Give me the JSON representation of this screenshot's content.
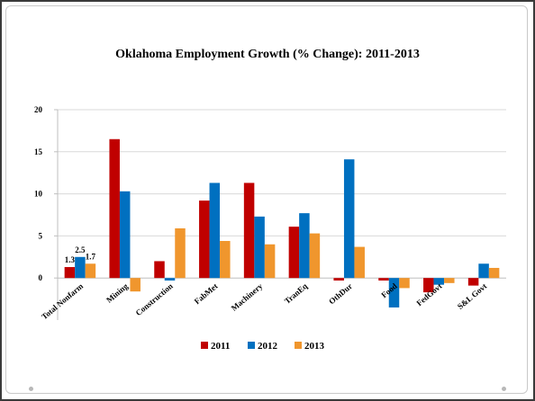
{
  "chart_data": {
    "type": "bar",
    "title": "Oklahoma Employment Growth (% Change): 2011-2013",
    "xlabel": "",
    "ylabel": "",
    "categories": [
      "Total Nonfarm",
      "Mining",
      "Construction",
      "FabMet",
      "Machinery",
      "TranEq",
      "OthDur",
      "Food",
      "FedGovt",
      "S&L Govt"
    ],
    "series": [
      {
        "name": "2011",
        "color": "#c00000",
        "values": [
          1.3,
          16.5,
          2.0,
          9.2,
          11.3,
          6.1,
          -0.3,
          -0.3,
          -1.7,
          -0.9
        ]
      },
      {
        "name": "2012",
        "color": "#0070c0",
        "values": [
          2.5,
          10.3,
          -0.3,
          11.3,
          7.3,
          7.7,
          14.1,
          -3.5,
          -0.8,
          1.7
        ]
      },
      {
        "name": "2013",
        "color": "#f0962d",
        "values": [
          1.7,
          -1.6,
          5.9,
          4.4,
          4.0,
          5.3,
          3.7,
          -1.2,
          -0.6,
          1.2
        ]
      }
    ],
    "data_labels": [
      {
        "series": 0,
        "category": 0,
        "text": "1.3"
      },
      {
        "series": 1,
        "category": 0,
        "text": "2.5"
      },
      {
        "series": 2,
        "category": 0,
        "text": "1.7"
      }
    ],
    "ylim": [
      -5,
      20
    ],
    "yticks": [
      "0",
      "5",
      "10",
      "15",
      "20"
    ],
    "ytick_values": [
      0,
      5,
      10,
      15,
      20
    ],
    "grid": true,
    "legend": "bottom"
  }
}
